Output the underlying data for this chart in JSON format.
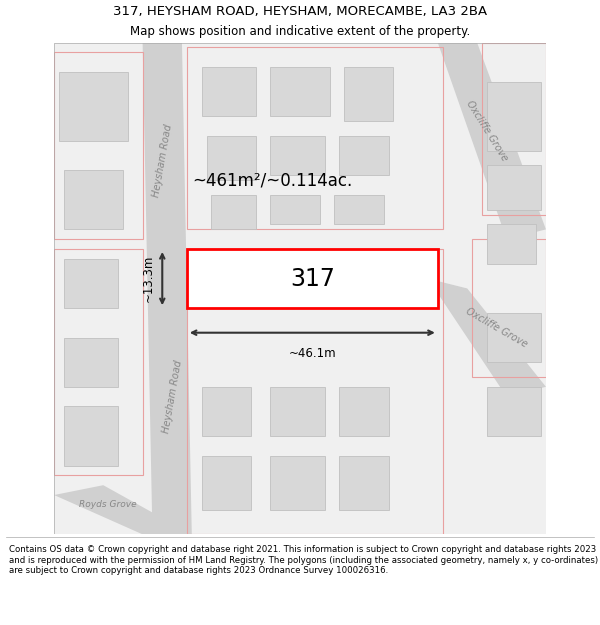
{
  "title_line1": "317, HEYSHAM ROAD, HEYSHAM, MORECAMBE, LA3 2BA",
  "title_line2": "Map shows position and indicative extent of the property.",
  "footer_text": "Contains OS data © Crown copyright and database right 2021. This information is subject to Crown copyright and database rights 2023 and is reproduced with the permission of HM Land Registry. The polygons (including the associated geometry, namely x, y co-ordinates) are subject to Crown copyright and database rights 2023 Ordnance Survey 100026316.",
  "map_bg": "#f0f0f0",
  "road_fill": "#d0d0d0",
  "building_fill": "#d8d8d8",
  "building_edge": "#c0c0c0",
  "plot_fill": "#ffffff",
  "plot_edge": "#ff0000",
  "plot_label": "317",
  "area_label": "~461m²/~0.114ac.",
  "width_label": "~46.1m",
  "height_label": "~13.3m",
  "road_label_heysham_upper": "Heysham Road",
  "road_label_heysham_lower": "Heysham Road",
  "road_label_oxcliffe_upper": "Oxcliffe Grove",
  "road_label_oxcliffe_lower": "Oxcliffe Grove",
  "road_label_royds": "Royds Grove",
  "street_outline_color": "#e8a0a0",
  "dim_color": "#333333",
  "text_color_road": "#888888",
  "bg_white": "#ffffff"
}
